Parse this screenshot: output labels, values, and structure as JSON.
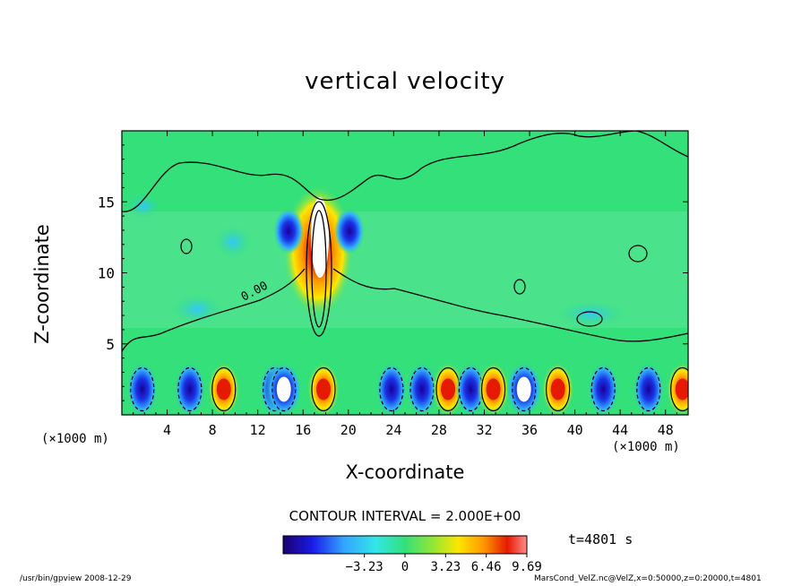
{
  "chart_data": {
    "type": "heatmap",
    "title": "vertical velocity",
    "xlabel": "X-coordinate",
    "ylabel": "Z-coordinate",
    "x_unit": "(×1000 m)",
    "x_unit_right": "(×1000 m)",
    "xlim": [
      0,
      50
    ],
    "ylim": [
      0,
      20
    ],
    "x_ticks": [
      "4",
      "8",
      "12",
      "16",
      "20",
      "24",
      "28",
      "32",
      "36",
      "40",
      "44",
      "48"
    ],
    "y_ticks": [
      "5",
      "10",
      "15"
    ],
    "contour_label": "0.00",
    "contour_interval": "CONTOUR INTERVAL = 2.000E+00",
    "colorbar_ticks": [
      "−3.23",
      "0",
      "3.23",
      "6.46",
      "9.69"
    ],
    "colorbar_range": [
      -9.69,
      9.69
    ],
    "time": "t=4801 s",
    "colors": {
      "background_field": "#33e07a",
      "strong_negative": "#1a0099",
      "strong_positive": "#e61a00",
      "saturated_positive": "#ffffff"
    }
  },
  "footer": {
    "left": "/usr/bin/gpview   2008-12-29",
    "right": "MarsCond_VelZ.nc@VelZ,x=0:50000,z=0:20000,t=4801"
  }
}
